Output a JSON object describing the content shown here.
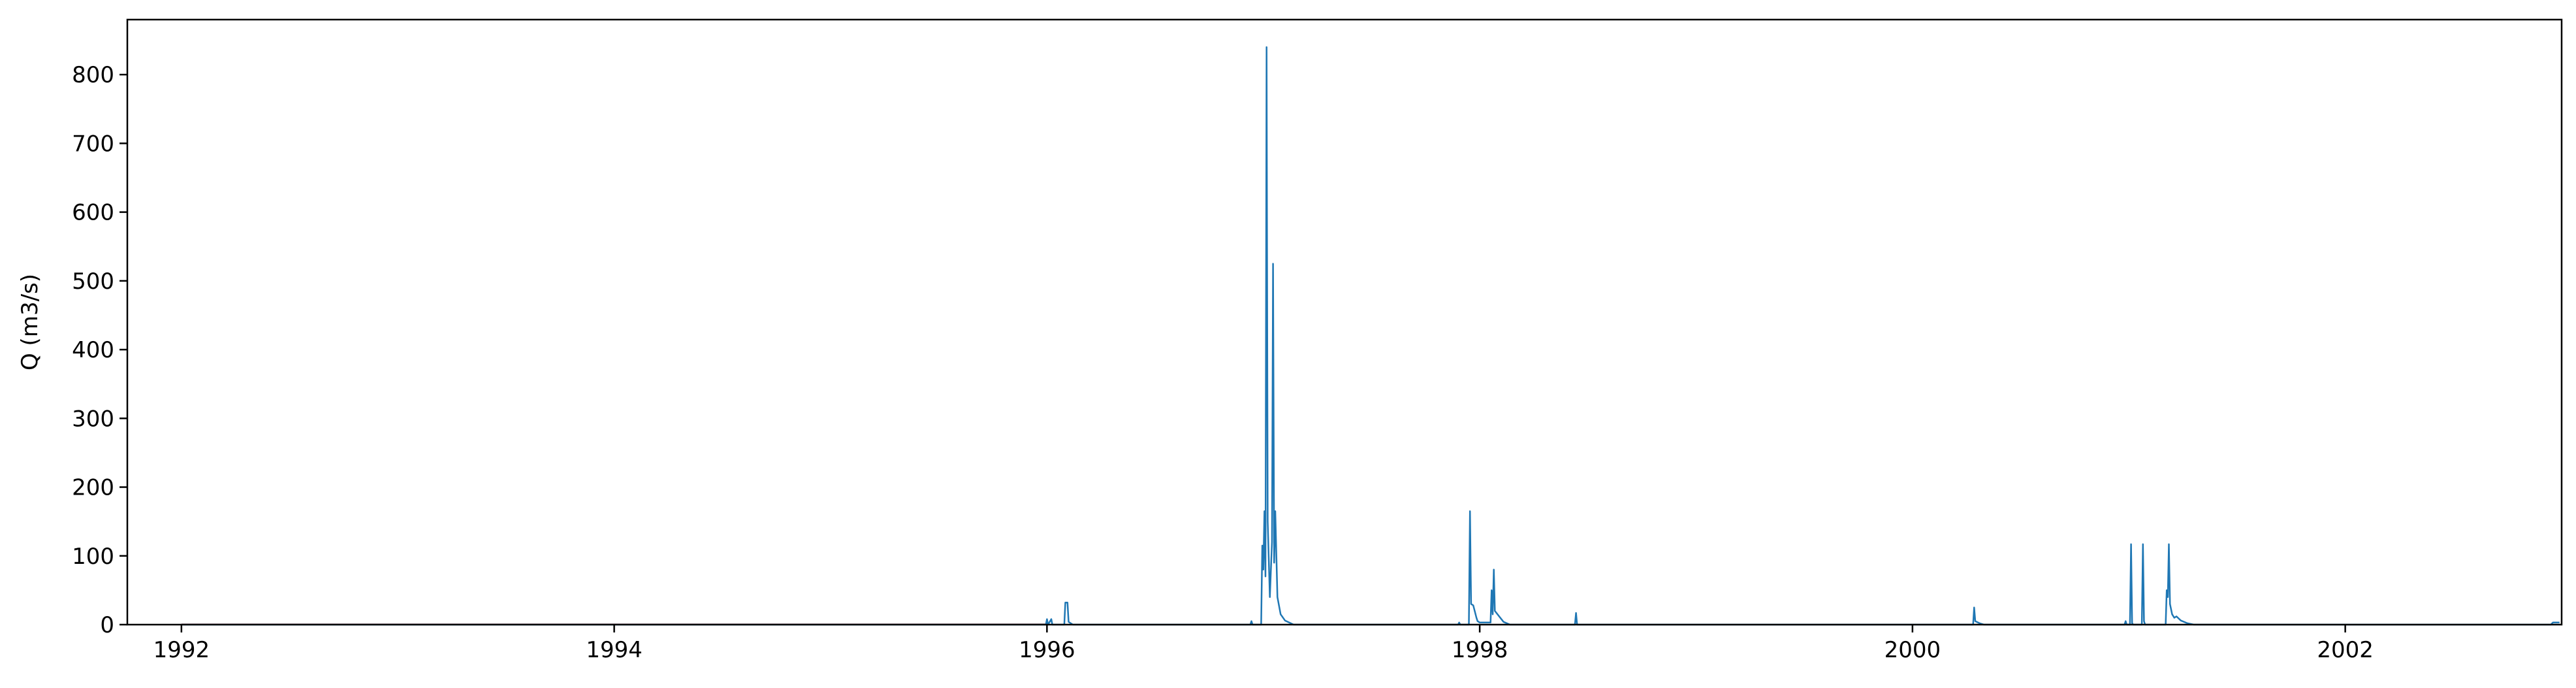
{
  "chart_data": {
    "type": "line",
    "title": "",
    "xlabel": "",
    "ylabel": "Q (m3/s)",
    "xlim": [
      1991.75,
      2003.0
    ],
    "ylim": [
      0,
      880
    ],
    "x_ticks": [
      1992,
      1994,
      1996,
      1998,
      2000,
      2002
    ],
    "x_tick_labels": [
      "1992",
      "1994",
      "1996",
      "1998",
      "2000",
      "2002"
    ],
    "y_ticks": [
      0,
      100,
      200,
      300,
      400,
      500,
      600,
      700,
      800
    ],
    "y_tick_labels": [
      "0",
      "100",
      "200",
      "300",
      "400",
      "500",
      "600",
      "700",
      "800"
    ],
    "grid": false,
    "legend": "none",
    "colors": {
      "series": "#1f77b4",
      "baseline": "#c0504d",
      "axes": "#000000"
    },
    "series": [
      {
        "points": [
          [
            1992.0,
            0
          ],
          [
            1995.995,
            0
          ],
          [
            1996.0,
            8
          ],
          [
            1996.005,
            0
          ],
          [
            1996.02,
            8
          ],
          [
            1996.025,
            0
          ],
          [
            1996.08,
            0
          ],
          [
            1996.085,
            32
          ],
          [
            1996.095,
            32
          ],
          [
            1996.1,
            4
          ],
          [
            1996.12,
            0
          ],
          [
            1996.94,
            0
          ],
          [
            1996.945,
            5
          ],
          [
            1996.95,
            0
          ],
          [
            1996.99,
            0
          ],
          [
            1996.995,
            115
          ],
          [
            1997.0,
            80
          ],
          [
            1997.005,
            165
          ],
          [
            1997.01,
            70
          ],
          [
            1997.015,
            840
          ],
          [
            1997.02,
            150
          ],
          [
            1997.03,
            40
          ],
          [
            1997.04,
            120
          ],
          [
            1997.045,
            525
          ],
          [
            1997.05,
            90
          ],
          [
            1997.055,
            165
          ],
          [
            1997.065,
            40
          ],
          [
            1997.08,
            15
          ],
          [
            1997.1,
            6
          ],
          [
            1997.14,
            0
          ],
          [
            1997.9,
            0
          ],
          [
            1997.905,
            3
          ],
          [
            1997.91,
            0
          ],
          [
            1997.95,
            0
          ],
          [
            1997.955,
            165
          ],
          [
            1997.96,
            30
          ],
          [
            1997.97,
            28
          ],
          [
            1997.985,
            10
          ],
          [
            1997.99,
            5
          ],
          [
            1998.0,
            3
          ],
          [
            1998.05,
            3
          ],
          [
            1998.055,
            50
          ],
          [
            1998.06,
            15
          ],
          [
            1998.065,
            80
          ],
          [
            1998.07,
            20
          ],
          [
            1998.09,
            12
          ],
          [
            1998.11,
            4
          ],
          [
            1998.14,
            0
          ],
          [
            1998.44,
            0
          ],
          [
            1998.445,
            17
          ],
          [
            1998.45,
            0
          ],
          [
            2000.28,
            0
          ],
          [
            2000.285,
            25
          ],
          [
            2000.29,
            5
          ],
          [
            2000.31,
            2
          ],
          [
            2000.33,
            0
          ],
          [
            2000.98,
            0
          ],
          [
            2000.985,
            5
          ],
          [
            2000.99,
            0
          ],
          [
            2001.005,
            0
          ],
          [
            2001.01,
            117
          ],
          [
            2001.015,
            2
          ],
          [
            2001.02,
            0
          ],
          [
            2001.06,
            0
          ],
          [
            2001.065,
            117
          ],
          [
            2001.07,
            5
          ],
          [
            2001.075,
            0
          ],
          [
            2001.17,
            0
          ],
          [
            2001.175,
            50
          ],
          [
            2001.18,
            40
          ],
          [
            2001.185,
            117
          ],
          [
            2001.19,
            30
          ],
          [
            2001.2,
            15
          ],
          [
            2001.21,
            10
          ],
          [
            2001.22,
            12
          ],
          [
            2001.24,
            6
          ],
          [
            2001.27,
            2
          ],
          [
            2001.3,
            0
          ],
          [
            2002.95,
            0
          ],
          [
            2002.96,
            3
          ],
          [
            2002.99,
            3
          ]
        ]
      }
    ]
  }
}
